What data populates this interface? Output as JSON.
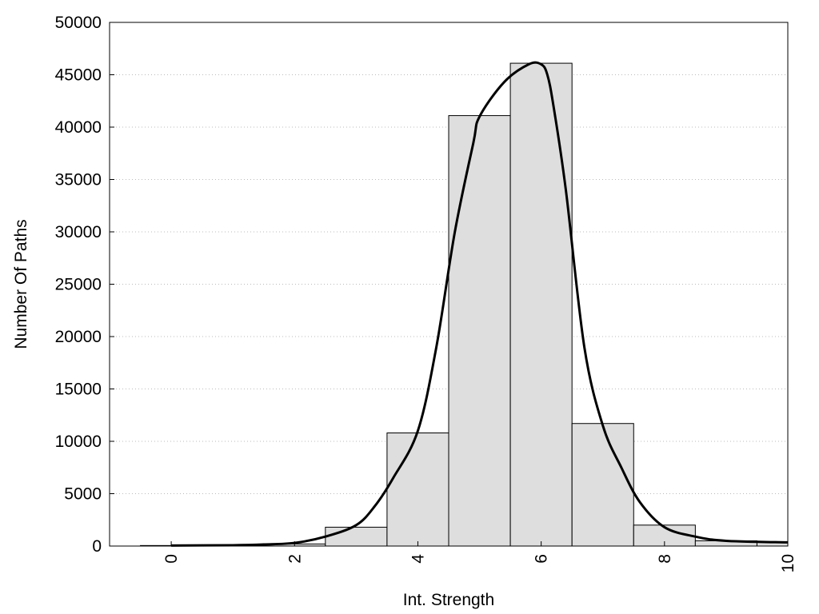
{
  "chart_data": {
    "type": "bar",
    "xlabel": "Int. Strength",
    "ylabel": "Number Of Paths",
    "xlim": [
      -1,
      10
    ],
    "ylim": [
      0,
      50000
    ],
    "xticks": [
      "0",
      "2",
      "4",
      "6",
      "8",
      "10"
    ],
    "yticks": [
      "0",
      "5000",
      "10000",
      "15000",
      "20000",
      "25000",
      "30000",
      "35000",
      "40000",
      "45000",
      "50000"
    ],
    "grid": "horizontal dotted",
    "colors": {
      "bar_fill": "#dedede",
      "bar_stroke": "#000000",
      "curve": "#000000",
      "grid": "#bbbbbb"
    },
    "bars": {
      "x": [
        0,
        1,
        2,
        3,
        4,
        5,
        6,
        7,
        8,
        9,
        10
      ],
      "values": [
        50,
        80,
        200,
        1800,
        10800,
        41100,
        46100,
        11700,
        2000,
        500,
        350
      ]
    },
    "curve": {
      "x": [
        0,
        1,
        1.5,
        2,
        2.5,
        3,
        3.3,
        3.6,
        4,
        4.3,
        4.6,
        4.9,
        5,
        5.4,
        5.8,
        6,
        6.1,
        6.2,
        6.4,
        6.7,
        7,
        7.3,
        7.6,
        8,
        8.5,
        9,
        10
      ],
      "y": [
        50,
        80,
        150,
        300,
        900,
        2000,
        3800,
        6500,
        11000,
        19000,
        30000,
        38500,
        41000,
        44300,
        46000,
        46000,
        45000,
        42000,
        34000,
        19000,
        11500,
        7500,
        4200,
        1800,
        900,
        500,
        350
      ]
    }
  }
}
